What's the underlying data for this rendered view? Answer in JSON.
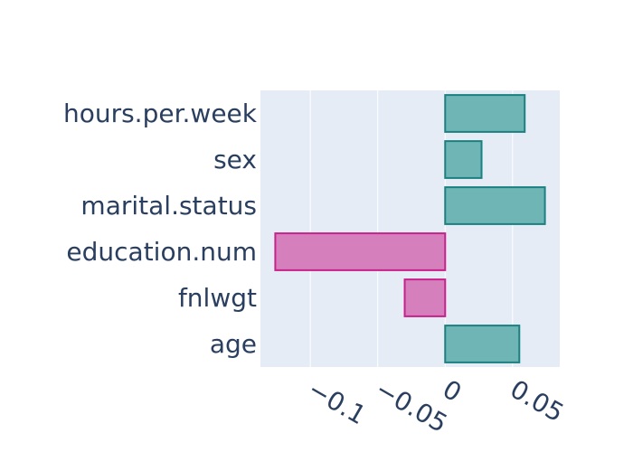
{
  "chart_data": {
    "type": "bar",
    "orientation": "horizontal",
    "title": "",
    "xlabel": "",
    "ylabel": "",
    "categories": [
      "age",
      "fnlwgt",
      "education.num",
      "marital.status",
      "sex",
      "hours.per.week"
    ],
    "values": [
      0.055,
      -0.03,
      -0.126,
      0.074,
      0.027,
      0.059
    ],
    "xlim": [
      -0.137,
      0.085
    ],
    "xticks": [
      -0.1,
      -0.05,
      0,
      0.05
    ],
    "xtick_labels": [
      "−0.1",
      "−0.05",
      "0",
      "0.05"
    ],
    "grid": true,
    "legend": "none",
    "colors": {
      "positive_fill": "#70b5b6",
      "positive_stroke": "#1a8080",
      "negative_fill": "#d57fbd",
      "negative_stroke": "#c7228a",
      "plot_background": "#e5ecf6",
      "grid": "#ffffff",
      "text": "#2a3f5f"
    }
  }
}
